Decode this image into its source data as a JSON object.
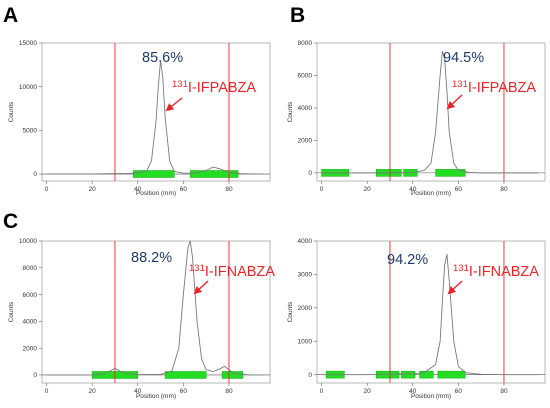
{
  "panels": [
    {
      "letter": "A",
      "xlabel": "Position (mm)",
      "ylabel": "Counts",
      "percentage": "85.6%",
      "compound_sup": "131",
      "compound_name": "I-IFPABZA",
      "colors": {
        "trace": "#7a7a7a",
        "markers": "#e8262a",
        "regions": "#22dd22"
      }
    },
    {
      "letter": "B",
      "xlabel": "Position (mm)",
      "ylabel": "Counts",
      "percentage": "94.5%",
      "compound_sup": "131",
      "compound_name": "I-IFPABZA",
      "colors": {
        "trace": "#7a7a7a",
        "markers": "#e8262a",
        "regions": "#22dd22"
      }
    },
    {
      "letter": "C",
      "xlabel": "Position (mm)",
      "ylabel": "Counts",
      "percentage": "88.2%",
      "compound_sup": "131",
      "compound_name": "I-IFNABZA",
      "colors": {
        "trace": "#7a7a7a",
        "markers": "#e8262a",
        "regions": "#22dd22"
      }
    },
    {
      "letter": "",
      "xlabel": "Position (mm)",
      "ylabel": "Counts",
      "percentage": "94.2%",
      "compound_sup": "131",
      "compound_name": "I-IFNABZA",
      "colors": {
        "trace": "#7a7a7a",
        "markers": "#e8262a",
        "regions": "#22dd22"
      }
    }
  ],
  "chart_data": [
    {
      "type": "line",
      "panel": "A",
      "xlabel": "Position (mm)",
      "ylabel": "Counts",
      "xlim": [
        -2,
        98
      ],
      "ylim": [
        -800,
        15000
      ],
      "xticks": [
        0,
        20,
        40,
        60,
        80
      ],
      "yticks": [
        0,
        5000,
        10000,
        15000
      ],
      "ytick_labels": [
        "0",
        "5000",
        "10000",
        "15000"
      ],
      "x": [
        0,
        10,
        20,
        30,
        35,
        40,
        44,
        46,
        48,
        49,
        50,
        51,
        52,
        54,
        56,
        60,
        65,
        70,
        73,
        76,
        80,
        85,
        90,
        95
      ],
      "y": [
        0,
        0,
        0,
        50,
        60,
        120,
        400,
        1500,
        6000,
        10000,
        13000,
        11000,
        6500,
        1500,
        300,
        100,
        100,
        400,
        800,
        600,
        200,
        50,
        0,
        0
      ],
      "markers": [
        30,
        80
      ],
      "regions": [
        [
          38,
          56
        ],
        [
          63,
          84
        ]
      ],
      "annotations": [
        {
          "text": "85.6%"
        },
        {
          "text": "131I-IFPABZA"
        }
      ]
    },
    {
      "type": "line",
      "panel": "B",
      "xlabel": "Position (mm)",
      "ylabel": "Counts",
      "xlim": [
        -2,
        98
      ],
      "ylim": [
        -500,
        8000
      ],
      "xticks": [
        0,
        20,
        40,
        60,
        80
      ],
      "yticks": [
        0,
        2000,
        4000,
        6000,
        8000
      ],
      "ytick_labels": [
        "0",
        "2000",
        "4000",
        "6000",
        "8000"
      ],
      "x": [
        0,
        10,
        20,
        30,
        40,
        45,
        48,
        50,
        52,
        53,
        54,
        55,
        56,
        58,
        60,
        65,
        70,
        80,
        90,
        95
      ],
      "y": [
        0,
        0,
        0,
        0,
        30,
        150,
        600,
        2500,
        6000,
        7500,
        7000,
        5000,
        2500,
        600,
        150,
        30,
        0,
        0,
        0,
        0
      ],
      "markers": [
        30,
        80
      ],
      "regions": [
        [
          0,
          12
        ],
        [
          24,
          35
        ],
        [
          36,
          42
        ],
        [
          50,
          63
        ]
      ],
      "annotations": [
        {
          "text": "94.5%"
        },
        {
          "text": "131I-IFPABZA"
        }
      ]
    },
    {
      "type": "line",
      "panel": "C",
      "xlabel": "Position (mm)",
      "ylabel": "Counts",
      "xlim": [
        -2,
        98
      ],
      "ylim": [
        -600,
        10000
      ],
      "xticks": [
        0,
        20,
        40,
        60,
        80
      ],
      "yticks": [
        0,
        2000,
        4000,
        6000,
        8000,
        10000
      ],
      "ytick_labels": [
        "0",
        "2000",
        "4000",
        "6000",
        "8000",
        "10000"
      ],
      "x": [
        0,
        10,
        20,
        25,
        28,
        30,
        32,
        35,
        40,
        50,
        55,
        58,
        60,
        62,
        63,
        64,
        66,
        68,
        70,
        73,
        76,
        78,
        80,
        82,
        85,
        90,
        95
      ],
      "y": [
        0,
        0,
        0,
        100,
        300,
        500,
        300,
        100,
        30,
        50,
        300,
        2000,
        6000,
        9500,
        10000,
        8800,
        4000,
        1200,
        400,
        250,
        450,
        650,
        400,
        150,
        50,
        0,
        0
      ],
      "markers": [
        30,
        80
      ],
      "regions": [
        [
          20,
          40
        ],
        [
          52,
          70
        ],
        [
          77,
          86
        ]
      ],
      "annotations": [
        {
          "text": "88.2%"
        },
        {
          "text": "131I-IFNABZA"
        }
      ]
    },
    {
      "type": "line",
      "panel": "",
      "xlabel": "Position (mm)",
      "ylabel": "Counts",
      "xlim": [
        -2,
        98
      ],
      "ylim": [
        -250,
        4000
      ],
      "xticks": [
        0,
        20,
        40,
        60,
        80
      ],
      "yticks": [
        0,
        1000,
        2000,
        3000,
        4000
      ],
      "ytick_labels": [
        "0",
        "1000",
        "2000",
        "3000",
        "4000"
      ],
      "x": [
        0,
        10,
        20,
        30,
        40,
        45,
        50,
        52,
        53,
        54,
        55,
        56,
        58,
        60,
        63,
        70,
        80,
        90,
        95
      ],
      "y": [
        0,
        0,
        0,
        10,
        30,
        60,
        300,
        1000,
        2200,
        3300,
        3600,
        2800,
        1000,
        250,
        60,
        10,
        0,
        0,
        0
      ],
      "markers": [
        30,
        80
      ],
      "regions": [
        [
          2,
          10
        ],
        [
          24,
          34
        ],
        [
          35,
          41
        ],
        [
          43,
          49
        ],
        [
          51,
          63
        ]
      ],
      "annotations": [
        {
          "text": "94.2%"
        },
        {
          "text": "131I-IFNABZA"
        }
      ]
    }
  ]
}
